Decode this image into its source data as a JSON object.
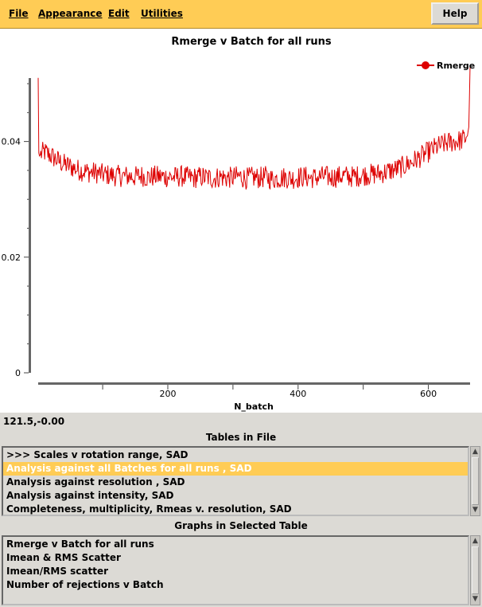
{
  "menu": {
    "file": "File",
    "appearance": "Appearance",
    "edit": "Edit",
    "utilities": "Utilities",
    "help": "Help"
  },
  "status": {
    "coordinates": "121.5,-0.00"
  },
  "tables": {
    "heading": "Tables in File",
    "items": [
      ">>> Scales v rotation range, SAD",
      "Analysis against all Batches for all runs , SAD",
      "Analysis against resolution , SAD",
      "Analysis against intensity, SAD",
      "Completeness, multiplicity, Rmeas v. resolution, SAD"
    ],
    "selected_index": 1
  },
  "graphs": {
    "heading": "Graphs in Selected Table",
    "items": [
      "Rmerge v Batch for all runs",
      "Imean & RMS Scatter",
      "Imean/RMS scatter",
      "Number of rejections v Batch"
    ]
  },
  "colors": {
    "menubar": "#ffcc55",
    "series": "#dd0000",
    "selected_row": "#ffcc55",
    "panel": "#dcdad5"
  },
  "chart_data": {
    "type": "line",
    "title": "Rmerge v Batch for all runs",
    "xlabel": "N_batch",
    "ylabel": "",
    "xlim": [
      1,
      664
    ],
    "ylim": [
      0,
      0.054
    ],
    "xticks": [
      200,
      400,
      600
    ],
    "yticks": [
      0,
      0.02,
      0.04
    ],
    "ytick_labels": [
      "0",
      "0.02",
      "0.04"
    ],
    "grid": false,
    "legend_position": "top-right",
    "series": [
      {
        "name": "Rmerge",
        "color": "#dd0000",
        "x": [
          1,
          2,
          3,
          5,
          10,
          20,
          30,
          40,
          50,
          60,
          70,
          80,
          90,
          100,
          110,
          120,
          130,
          140,
          150,
          160,
          170,
          180,
          190,
          200,
          210,
          220,
          230,
          240,
          250,
          260,
          270,
          280,
          290,
          300,
          310,
          320,
          330,
          340,
          350,
          360,
          370,
          380,
          390,
          400,
          410,
          420,
          430,
          440,
          450,
          460,
          470,
          480,
          490,
          500,
          510,
          520,
          530,
          540,
          550,
          560,
          570,
          580,
          590,
          600,
          610,
          620,
          630,
          640,
          650,
          655,
          658,
          660,
          662,
          663,
          664
        ],
        "y": [
          0.051,
          0.038,
          0.0375,
          0.0378,
          0.0382,
          0.0376,
          0.0368,
          0.0361,
          0.0357,
          0.0352,
          0.0349,
          0.0347,
          0.0346,
          0.0343,
          0.0342,
          0.0341,
          0.034,
          0.034,
          0.0339,
          0.0341,
          0.0338,
          0.034,
          0.0339,
          0.0339,
          0.0338,
          0.034,
          0.0338,
          0.0337,
          0.0339,
          0.0338,
          0.0336,
          0.0339,
          0.0337,
          0.0338,
          0.034,
          0.0336,
          0.0338,
          0.0337,
          0.0339,
          0.0335,
          0.0337,
          0.0338,
          0.0336,
          0.0338,
          0.0339,
          0.0337,
          0.0338,
          0.034,
          0.0338,
          0.0339,
          0.0341,
          0.0339,
          0.034,
          0.0342,
          0.0343,
          0.0344,
          0.0346,
          0.0349,
          0.0352,
          0.0356,
          0.0362,
          0.0368,
          0.0375,
          0.0382,
          0.0389,
          0.0394,
          0.0398,
          0.04,
          0.0402,
          0.0405,
          0.0407,
          0.041,
          0.0425,
          0.0475,
          0.053
        ]
      }
    ]
  }
}
